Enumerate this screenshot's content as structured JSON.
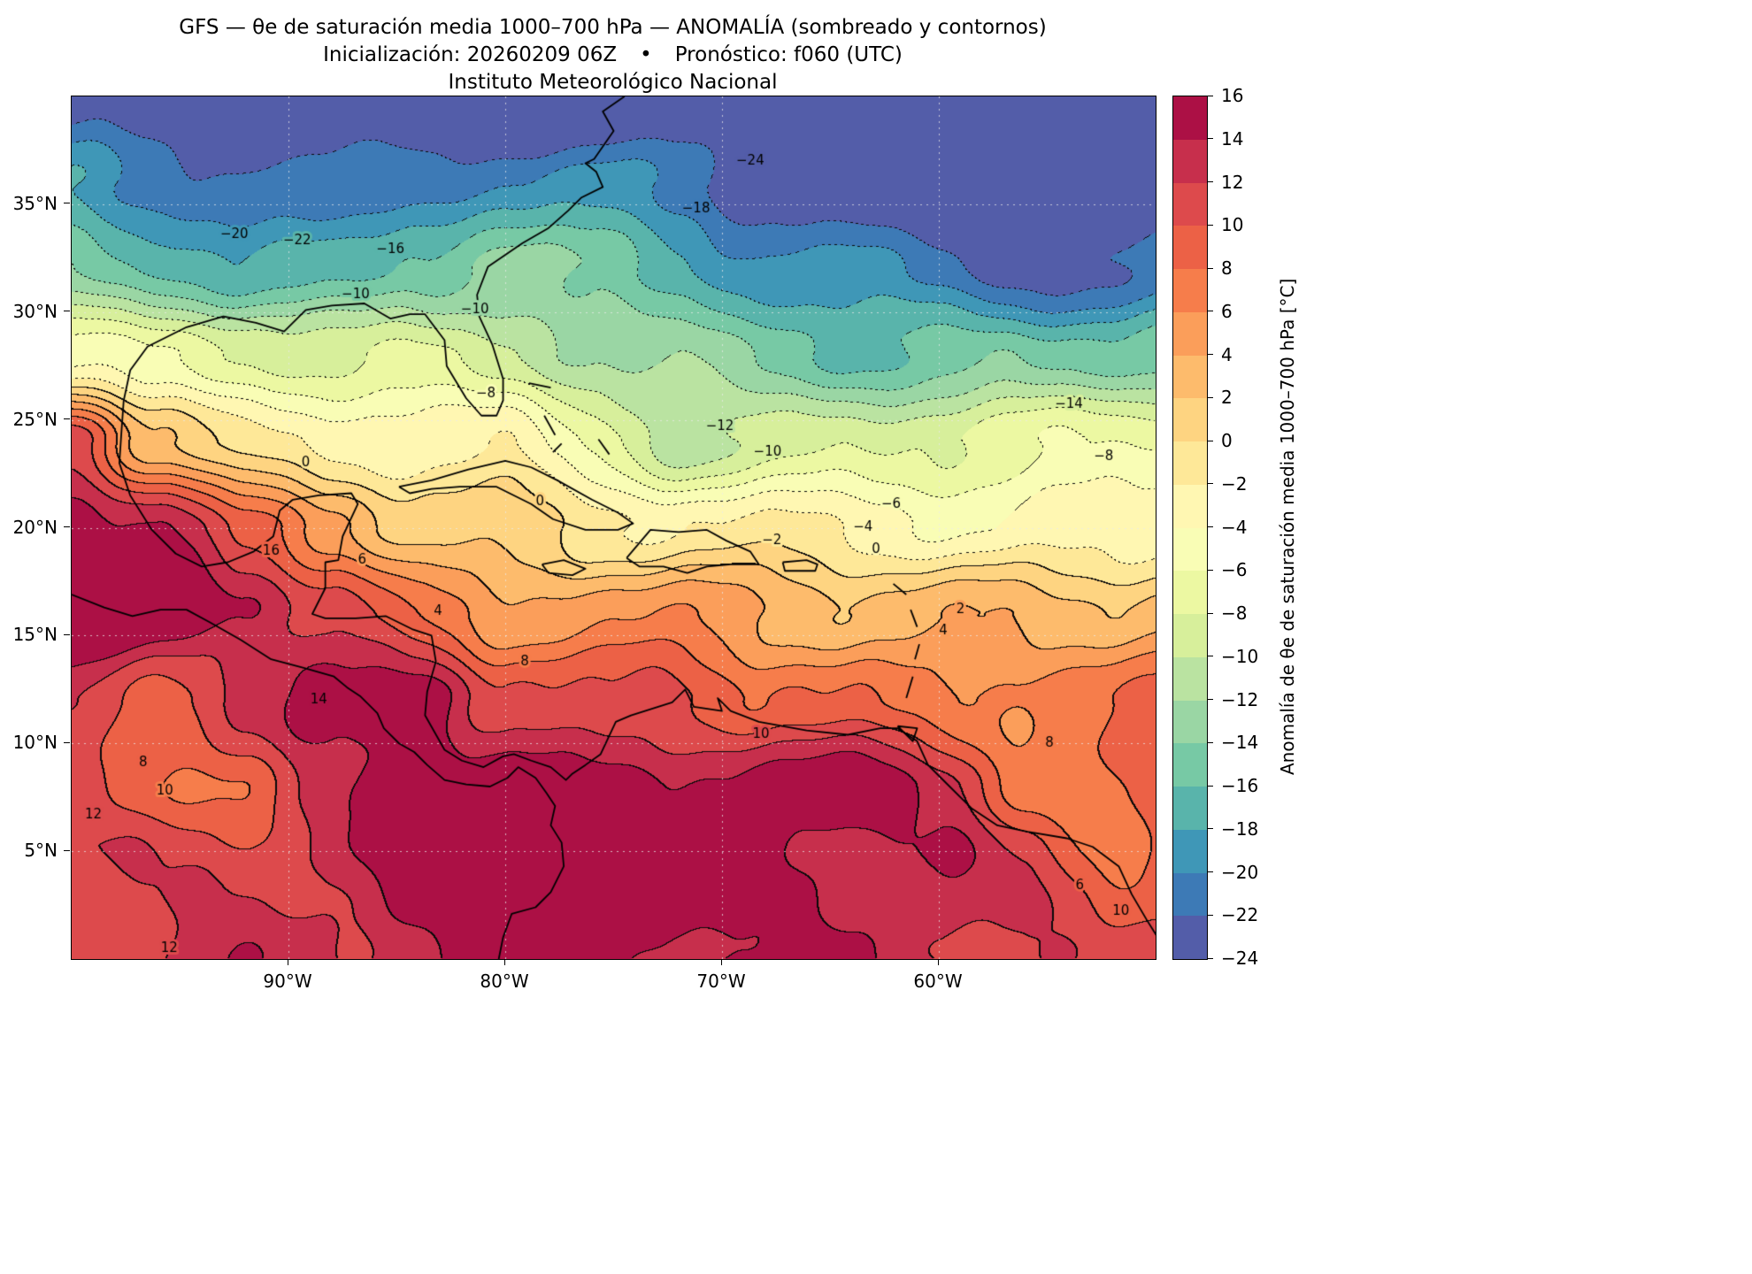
{
  "figure": {
    "title": "GFS — θe de saturación media 1000–700 hPa — ANOMALÍA (sombreado y contornos)",
    "subtitle_init": "Inicialización: 20260209 06Z",
    "subtitle_sep": "•",
    "subtitle_forecast": "Pronóstico: f060 (UTC)",
    "institution": "Instituto Meteorológico Nacional"
  },
  "chart_data": {
    "type": "heatmap",
    "variable": "Anomalía de θe de saturación media 1000–700 hPa",
    "units": "°C",
    "model": "GFS",
    "init": "20260209 06Z",
    "forecast": "f060 (UTC)",
    "grid_on": true,
    "extent": {
      "lon_min": -100,
      "lon_max": -50,
      "lat_min": 0,
      "lat_max": 40
    },
    "x_ticks": [
      {
        "lon": -90,
        "label": "90°W"
      },
      {
        "lon": -80,
        "label": "80°W"
      },
      {
        "lon": -70,
        "label": "70°W"
      },
      {
        "lon": -60,
        "label": "60°W"
      }
    ],
    "y_ticks": [
      {
        "lat": 35,
        "label": "35°N"
      },
      {
        "lat": 30,
        "label": "30°N"
      },
      {
        "lat": 25,
        "label": "25°N"
      },
      {
        "lat": 20,
        "label": "20°N"
      },
      {
        "lat": 15,
        "label": "15°N"
      },
      {
        "lat": 10,
        "label": "10°N"
      },
      {
        "lat": 5,
        "label": "5°N"
      }
    ],
    "contour_interval": 2,
    "negative_contours_dotted": true,
    "shading_levels": [
      -24,
      -22,
      -20,
      -18,
      -16,
      -14,
      -12,
      -10,
      -8,
      -6,
      -4,
      -2,
      0,
      2,
      4,
      6,
      8,
      10,
      12,
      14,
      16
    ],
    "colormap_anchors": [
      "#5e4fa2",
      "#3288bd",
      "#66c2a5",
      "#abdda4",
      "#e6f598",
      "#ffffbf",
      "#fee08b",
      "#fdae61",
      "#f46d43",
      "#d53e4f",
      "#9e0142"
    ],
    "grid": {
      "lons": [
        -100,
        -96,
        -92,
        -88,
        -84,
        -80,
        -76,
        -72,
        -68,
        -64,
        -60,
        -56,
        -52,
        -48
      ],
      "lats": [
        40,
        36,
        32,
        28,
        24,
        20,
        16,
        12,
        8,
        4,
        0
      ],
      "anomaly_values": [
        [
          -24,
          -25,
          -25,
          -25,
          -26,
          -26,
          -25,
          -25,
          -25,
          -26,
          -26,
          -26,
          -25,
          -25
        ],
        [
          -19,
          -20,
          -21,
          -22,
          -21,
          -20,
          -20,
          -21,
          -23,
          -24,
          -25,
          -25,
          -25,
          -24
        ],
        [
          -14,
          -16,
          -18,
          -17,
          -15,
          -13,
          -15,
          -17,
          -19,
          -20,
          -21,
          -22,
          -23,
          -22
        ],
        [
          -5,
          -7,
          -8,
          -9,
          -8,
          -9,
          -11,
          -13,
          -15,
          -16,
          -16,
          -15,
          -14,
          -13
        ],
        [
          12,
          3,
          -1,
          -2,
          -3,
          -3,
          -7,
          -11,
          -9,
          -8,
          -7,
          -7,
          -7,
          -6
        ],
        [
          16,
          14,
          8,
          5,
          2,
          1,
          -1,
          -1,
          -2,
          -3,
          -4,
          -3,
          -3,
          -2
        ],
        [
          16,
          16,
          15,
          11,
          7,
          5,
          6,
          5,
          4,
          3,
          3,
          3,
          3,
          4
        ],
        [
          12,
          10,
          13,
          15,
          16,
          10,
          9,
          11,
          9,
          8,
          7,
          7,
          7,
          8
        ],
        [
          10,
          8,
          8,
          12,
          16,
          16,
          15,
          14,
          15,
          15,
          12,
          8,
          8,
          10
        ],
        [
          11,
          12,
          12,
          13,
          15,
          16,
          16,
          15,
          15,
          14,
          14,
          11,
          8,
          10
        ],
        [
          12,
          12,
          13,
          13,
          14,
          15,
          15,
          15,
          14,
          14,
          13,
          12,
          10,
          11
        ]
      ]
    },
    "contour_labels": [
      {
        "v": -20,
        "lon": -92.5,
        "lat": 33.6
      },
      {
        "v": -22,
        "lon": -89.6,
        "lat": 33.3
      },
      {
        "v": -16,
        "lon": -85.3,
        "lat": 32.9
      },
      {
        "v": -10,
        "lon": -86.9,
        "lat": 30.8
      },
      {
        "v": -10,
        "lon": -81.4,
        "lat": 30.1
      },
      {
        "v": -18,
        "lon": -71.2,
        "lat": 34.8
      },
      {
        "v": -24,
        "lon": -68.7,
        "lat": 37.0
      },
      {
        "v": -8,
        "lon": -80.9,
        "lat": 26.2
      },
      {
        "v": -14,
        "lon": -54.0,
        "lat": 25.7
      },
      {
        "v": -8,
        "lon": -52.4,
        "lat": 23.3
      },
      {
        "v": -12,
        "lon": -70.1,
        "lat": 24.7
      },
      {
        "v": -10,
        "lon": -67.9,
        "lat": 23.5
      },
      {
        "v": -6,
        "lon": -62.2,
        "lat": 21.1
      },
      {
        "v": -4,
        "lon": -63.5,
        "lat": 20.0
      },
      {
        "v": -2,
        "lon": -67.7,
        "lat": 19.4
      },
      {
        "v": 0,
        "lon": -89.2,
        "lat": 23.0
      },
      {
        "v": 0,
        "lon": -78.4,
        "lat": 21.2
      },
      {
        "v": 0,
        "lon": -62.9,
        "lat": 19.0
      },
      {
        "v": 2,
        "lon": -59.0,
        "lat": 16.2
      },
      {
        "v": 4,
        "lon": -59.8,
        "lat": 15.2
      },
      {
        "v": 4,
        "lon": -83.1,
        "lat": 16.1
      },
      {
        "v": 6,
        "lon": -86.6,
        "lat": 18.5
      },
      {
        "v": 8,
        "lon": -79.1,
        "lat": 13.8
      },
      {
        "v": 14,
        "lon": -88.6,
        "lat": 12.0
      },
      {
        "v": 16,
        "lon": -90.8,
        "lat": 18.9
      },
      {
        "v": 10,
        "lon": -68.2,
        "lat": 10.4
      },
      {
        "v": 12,
        "lon": -99.0,
        "lat": 6.7
      },
      {
        "v": 8,
        "lon": -96.7,
        "lat": 9.1
      },
      {
        "v": 10,
        "lon": -95.7,
        "lat": 7.8
      },
      {
        "v": 8,
        "lon": -54.9,
        "lat": 10.0
      },
      {
        "v": 6,
        "lon": -53.5,
        "lat": 3.4
      },
      {
        "v": 12,
        "lon": -95.5,
        "lat": 0.5
      },
      {
        "v": 10,
        "lon": -51.6,
        "lat": 2.2
      }
    ],
    "colorbar": {
      "ticks": [
        16,
        14,
        12,
        10,
        8,
        6,
        4,
        2,
        0,
        -2,
        -4,
        -6,
        -8,
        -10,
        -12,
        -14,
        -16,
        -18,
        -20,
        -22,
        -24
      ],
      "label": "Anomalía de θe de saturación media 1000–700 hPa [°C]"
    },
    "coastlines": [
      [
        [
          -74.5,
          40.0
        ],
        [
          -75.5,
          39.3
        ],
        [
          -75.0,
          38.4
        ],
        [
          -75.9,
          37.1
        ],
        [
          -76.3,
          36.9
        ],
        [
          -75.8,
          36.5
        ],
        [
          -75.5,
          35.8
        ],
        [
          -76.5,
          35.3
        ],
        [
          -77.1,
          34.7
        ],
        [
          -78.0,
          33.9
        ],
        [
          -79.2,
          33.2
        ],
        [
          -80.8,
          32.1
        ],
        [
          -81.3,
          30.8
        ],
        [
          -81.2,
          29.8
        ],
        [
          -80.6,
          28.5
        ],
        [
          -80.1,
          26.9
        ],
        [
          -80.1,
          25.9
        ],
        [
          -80.4,
          25.2
        ],
        [
          -81.1,
          25.2
        ],
        [
          -81.8,
          26.0
        ],
        [
          -82.7,
          27.5
        ],
        [
          -82.8,
          28.7
        ],
        [
          -83.7,
          29.9
        ],
        [
          -84.4,
          29.9
        ],
        [
          -85.3,
          29.7
        ],
        [
          -86.5,
          30.4
        ],
        [
          -88.0,
          30.3
        ],
        [
          -89.2,
          30.1
        ],
        [
          -90.2,
          29.1
        ],
        [
          -91.5,
          29.5
        ],
        [
          -93.0,
          29.8
        ],
        [
          -94.7,
          29.3
        ],
        [
          -96.5,
          28.4
        ],
        [
          -97.3,
          27.3
        ],
        [
          -97.6,
          25.9
        ],
        [
          -97.7,
          24.5
        ],
        [
          -97.8,
          23.0
        ],
        [
          -97.3,
          21.5
        ],
        [
          -96.3,
          19.9
        ],
        [
          -95.2,
          18.8
        ],
        [
          -94.0,
          18.2
        ],
        [
          -92.8,
          18.4
        ],
        [
          -91.6,
          18.9
        ],
        [
          -90.7,
          19.6
        ],
        [
          -90.4,
          20.8
        ],
        [
          -89.8,
          21.3
        ],
        [
          -88.6,
          21.5
        ],
        [
          -87.1,
          21.6
        ],
        [
          -86.8,
          21.1
        ],
        [
          -87.5,
          19.6
        ],
        [
          -87.7,
          18.5
        ],
        [
          -88.3,
          18.4
        ],
        [
          -88.3,
          17.2
        ],
        [
          -88.9,
          16.0
        ],
        [
          -88.3,
          15.8
        ],
        [
          -86.9,
          15.8
        ],
        [
          -85.5,
          15.9
        ],
        [
          -84.3,
          15.3
        ],
        [
          -83.4,
          15.0
        ],
        [
          -83.2,
          13.8
        ],
        [
          -83.6,
          12.4
        ],
        [
          -83.7,
          11.3
        ],
        [
          -82.8,
          9.7
        ],
        [
          -82.0,
          9.2
        ],
        [
          -81.0,
          8.9
        ],
        [
          -80.1,
          9.4
        ],
        [
          -79.6,
          9.5
        ],
        [
          -78.8,
          9.2
        ],
        [
          -77.9,
          8.9
        ],
        [
          -77.2,
          8.3
        ],
        [
          -76.9,
          8.6
        ],
        [
          -76.3,
          9.0
        ],
        [
          -75.6,
          9.5
        ],
        [
          -74.9,
          11.0
        ],
        [
          -74.2,
          11.3
        ],
        [
          -72.3,
          11.9
        ],
        [
          -71.7,
          12.5
        ],
        [
          -71.3,
          11.7
        ],
        [
          -70.0,
          11.5
        ],
        [
          -70.2,
          12.1
        ],
        [
          -69.6,
          11.5
        ],
        [
          -68.3,
          11.0
        ],
        [
          -66.1,
          10.6
        ],
        [
          -64.2,
          10.4
        ],
        [
          -62.7,
          10.7
        ],
        [
          -61.9,
          10.7
        ],
        [
          -61.0,
          10.1
        ],
        [
          -60.5,
          9.0
        ],
        [
          -59.9,
          8.4
        ],
        [
          -58.5,
          7.0
        ],
        [
          -57.3,
          6.2
        ],
        [
          -55.9,
          5.9
        ],
        [
          -54.1,
          5.6
        ],
        [
          -52.9,
          5.2
        ],
        [
          -51.7,
          4.3
        ],
        [
          -51.1,
          3.0
        ],
        [
          -50.4,
          1.8
        ],
        [
          -49.9,
          1.0
        ],
        [
          -49.5,
          0.0
        ]
      ],
      [
        [
          -100.0,
          16.9
        ],
        [
          -98.5,
          16.3
        ],
        [
          -97.2,
          15.9
        ],
        [
          -95.9,
          16.2
        ],
        [
          -94.7,
          16.2
        ],
        [
          -93.6,
          15.6
        ],
        [
          -92.2,
          14.8
        ],
        [
          -90.8,
          13.9
        ],
        [
          -89.3,
          13.5
        ],
        [
          -87.9,
          13.1
        ],
        [
          -87.3,
          12.6
        ],
        [
          -86.7,
          12.2
        ],
        [
          -85.9,
          11.4
        ],
        [
          -85.6,
          10.7
        ],
        [
          -84.9,
          10.0
        ],
        [
          -84.2,
          9.6
        ],
        [
          -83.6,
          9.0
        ],
        [
          -82.8,
          8.3
        ],
        [
          -81.8,
          8.1
        ],
        [
          -80.7,
          8.0
        ],
        [
          -79.9,
          8.4
        ],
        [
          -79.4,
          8.9
        ],
        [
          -78.6,
          8.4
        ],
        [
          -78.1,
          7.7
        ],
        [
          -77.7,
          7.1
        ],
        [
          -77.9,
          6.2
        ],
        [
          -77.4,
          5.4
        ],
        [
          -77.3,
          4.3
        ],
        [
          -77.9,
          3.1
        ],
        [
          -78.6,
          2.4
        ],
        [
          -79.7,
          2.1
        ],
        [
          -80.1,
          1.0
        ],
        [
          -80.3,
          0.0
        ]
      ],
      [
        [
          -84.9,
          21.9
        ],
        [
          -83.4,
          22.2
        ],
        [
          -81.7,
          22.7
        ],
        [
          -80.0,
          23.1
        ],
        [
          -78.8,
          22.8
        ],
        [
          -77.6,
          22.2
        ],
        [
          -76.0,
          21.3
        ],
        [
          -74.8,
          20.7
        ],
        [
          -74.1,
          20.2
        ],
        [
          -74.8,
          19.9
        ],
        [
          -76.3,
          19.9
        ],
        [
          -77.8,
          20.4
        ],
        [
          -78.8,
          21.1
        ],
        [
          -80.4,
          21.9
        ],
        [
          -82.1,
          21.9
        ],
        [
          -83.4,
          21.8
        ],
        [
          -84.4,
          21.6
        ],
        [
          -84.9,
          21.9
        ]
      ],
      [
        [
          -74.4,
          18.6
        ],
        [
          -73.3,
          19.9
        ],
        [
          -72.0,
          19.8
        ],
        [
          -70.7,
          19.9
        ],
        [
          -69.8,
          19.4
        ],
        [
          -68.7,
          18.9
        ],
        [
          -68.3,
          18.3
        ],
        [
          -69.6,
          18.3
        ],
        [
          -70.7,
          18.2
        ],
        [
          -71.6,
          17.9
        ],
        [
          -72.7,
          18.2
        ],
        [
          -73.8,
          18.2
        ],
        [
          -74.4,
          18.6
        ]
      ],
      [
        [
          -78.3,
          18.3
        ],
        [
          -77.3,
          18.5
        ],
        [
          -76.3,
          18.1
        ],
        [
          -76.9,
          17.8
        ],
        [
          -78.0,
          17.9
        ],
        [
          -78.3,
          18.3
        ]
      ],
      [
        [
          -67.2,
          18.4
        ],
        [
          -66.1,
          18.5
        ],
        [
          -65.6,
          18.3
        ],
        [
          -65.7,
          18.0
        ],
        [
          -67.1,
          18.0
        ],
        [
          -67.2,
          18.4
        ]
      ],
      [
        [
          -78.9,
          26.7
        ],
        [
          -77.9,
          26.5
        ]
      ],
      [
        [
          -78.2,
          25.2
        ],
        [
          -77.7,
          24.3
        ]
      ],
      [
        [
          -77.4,
          23.9
        ],
        [
          -77.8,
          23.5
        ]
      ],
      [
        [
          -75.7,
          24.1
        ],
        [
          -75.2,
          23.4
        ]
      ],
      [
        [
          -61.5,
          12.1
        ],
        [
          -61.2,
          13.1
        ]
      ],
      [
        [
          -61.1,
          13.9
        ],
        [
          -60.9,
          14.6
        ]
      ],
      [
        [
          -61.0,
          15.4
        ],
        [
          -61.3,
          16.2
        ]
      ],
      [
        [
          -61.5,
          16.9
        ],
        [
          -62.1,
          17.4
        ]
      ],
      [
        [
          -61.9,
          10.8
        ],
        [
          -61.0,
          10.7
        ],
        [
          -61.2,
          10.1
        ],
        [
          -61.9,
          10.8
        ]
      ]
    ]
  }
}
